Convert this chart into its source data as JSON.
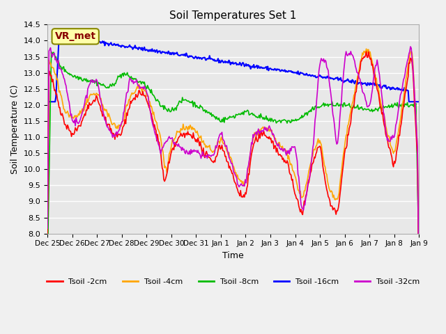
{
  "title": "Soil Temperatures Set 1",
  "xlabel": "Time",
  "ylabel": "Soil Temperature (C)",
  "ylim": [
    8.0,
    14.5
  ],
  "yticks": [
    8.0,
    8.5,
    9.0,
    9.5,
    10.0,
    10.5,
    11.0,
    11.5,
    12.0,
    12.5,
    13.0,
    13.5,
    14.0,
    14.5
  ],
  "colors": {
    "Tsoil -2cm": "#ff0000",
    "Tsoil -4cm": "#ffa500",
    "Tsoil -8cm": "#00bb00",
    "Tsoil -16cm": "#0000ff",
    "Tsoil -32cm": "#cc00cc"
  },
  "bg_color": "#e8e8e8",
  "grid_color": "#ffffff",
  "annotation_text": "VR_met",
  "annotation_bg": "#ffffaa",
  "annotation_border": "#888800"
}
